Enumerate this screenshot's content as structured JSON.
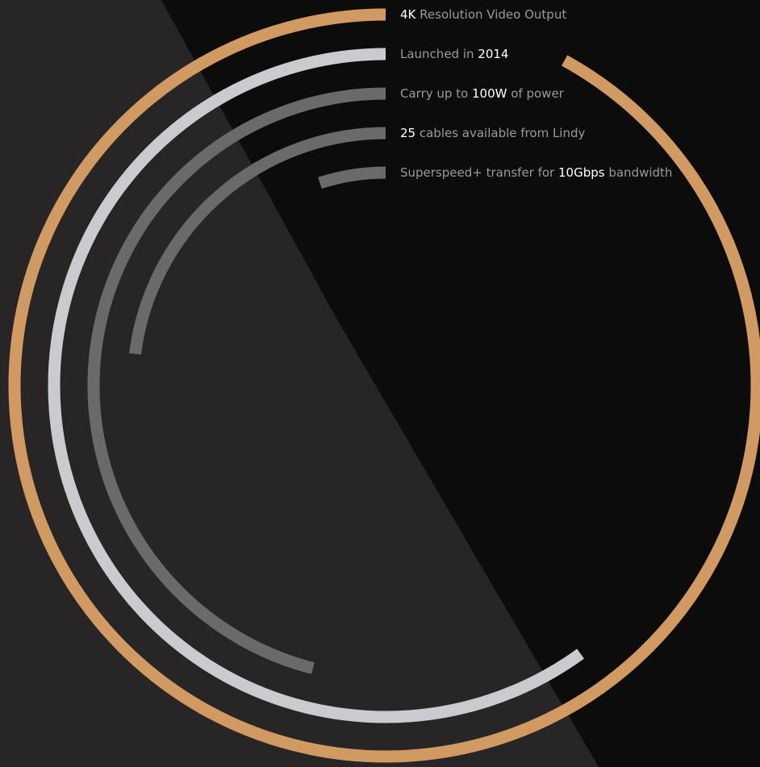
{
  "chart_data": {
    "type": "radial-bar",
    "title": "",
    "bars": [
      {
        "label_pre": "",
        "label_hi": "4K",
        "label_post": " Resolution Video Output",
        "fraction": 0.92,
        "color": "#d19a63"
      },
      {
        "label_pre": "Launched in ",
        "label_hi": "2014",
        "label_post": "",
        "fraction": 0.6,
        "color": "#cacbce"
      },
      {
        "label_pre": "Carry up to ",
        "label_hi": "100W",
        "label_post": " of power",
        "fraction": 0.46,
        "color": "#6a6a6a"
      },
      {
        "label_pre": "",
        "label_hi": "25",
        "label_post": " cables available from Lindy",
        "fraction": 0.23,
        "color": "#6a6a6a"
      },
      {
        "label_pre": "Superspeed+ transfer for ",
        "label_hi": "10Gbps",
        "label_post": " bandwidth",
        "fraction": 0.05,
        "color": "#6a6a6a"
      }
    ]
  },
  "colors": {
    "background_dark": "#0d0c0c",
    "background_light": "#272525",
    "label_text": "#9a9a9a",
    "highlight_text": "#ffffff"
  }
}
